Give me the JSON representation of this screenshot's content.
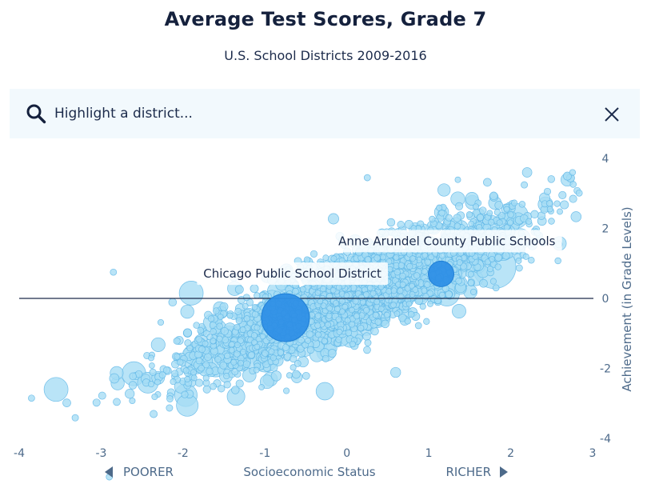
{
  "header": {
    "title": "Average Test Scores, Grade 7",
    "subtitle": "U.S. School Districts 2009-2016"
  },
  "search": {
    "placeholder": "Highlight a district..."
  },
  "colors": {
    "point_fill": "#a5dcf5",
    "point_stroke": "#5fb6e6",
    "highlight_fill": "#2e8fe6",
    "highlight_stroke": "#1f7fd6",
    "axis_text": "#4d6a8a",
    "zero_line": "#1c2b4b"
  },
  "chart_data": {
    "type": "scatter",
    "title": "Average Test Scores, Grade 7",
    "subtitle": "U.S. School Districts 2009-2016",
    "xlabel": "Socioeconomic Status",
    "ylabel": "Achievement (in Grade Levels)",
    "xlim": [
      -4,
      3
    ],
    "ylim": [
      -4,
      4
    ],
    "x_ticks": [
      -4,
      -3,
      -2,
      -1,
      0,
      1,
      2,
      3
    ],
    "y_ticks": [
      -4,
      -2,
      0,
      2,
      4
    ],
    "x_tick_labels": [
      "-4",
      "-3",
      "-2",
      "-1",
      "0",
      "1",
      "2",
      "3"
    ],
    "y_tick_labels": [
      "-4",
      "-2",
      "0",
      "2",
      "4"
    ],
    "y_axis_side": "right",
    "reference_line_y": 0,
    "grid": false,
    "direction_labels": {
      "left": "POORER",
      "right": "RICHER"
    },
    "highlighted": [
      {
        "name": "Chicago Public School District",
        "x": -0.75,
        "y": -0.55,
        "size": "large"
      },
      {
        "name": "Anne Arundel County Public Schools",
        "x": 1.15,
        "y": 0.7,
        "size": "medium"
      }
    ],
    "distribution": {
      "approx_slope": 0.95,
      "approx_intercept": 0.05,
      "approx_spread_sd": 0.6,
      "approx_point_count": 2500
    },
    "extra_points": [
      {
        "x": -3.55,
        "y": -2.6,
        "size": "medium"
      },
      {
        "x": -2.6,
        "y": -2.15,
        "size": "medium"
      },
      {
        "x": -2.05,
        "y": -1.75,
        "size": "small"
      },
      {
        "x": -1.9,
        "y": 0.15,
        "size": "medium"
      },
      {
        "x": -1.6,
        "y": -1.9,
        "size": "medium"
      },
      {
        "x": -1.1,
        "y": -1.2,
        "size": "medium"
      },
      {
        "x": -0.4,
        "y": -0.15,
        "size": "small"
      },
      {
        "x": 0.2,
        "y": -0.55,
        "size": "medium"
      },
      {
        "x": 0.5,
        "y": 0.3,
        "size": "small"
      },
      {
        "x": 1.8,
        "y": 0.9,
        "size": "large"
      },
      {
        "x": 1.6,
        "y": 1.5,
        "size": "small"
      },
      {
        "x": 2.2,
        "y": 3.6,
        "size": "small"
      },
      {
        "x": -2.85,
        "y": 0.75,
        "size": "tiny"
      },
      {
        "x": 0.25,
        "y": 3.45,
        "size": "tiny"
      },
      {
        "x": -2.9,
        "y": -5.1,
        "size": "tiny"
      },
      {
        "x": -3.85,
        "y": -2.85,
        "size": "tiny"
      }
    ]
  }
}
